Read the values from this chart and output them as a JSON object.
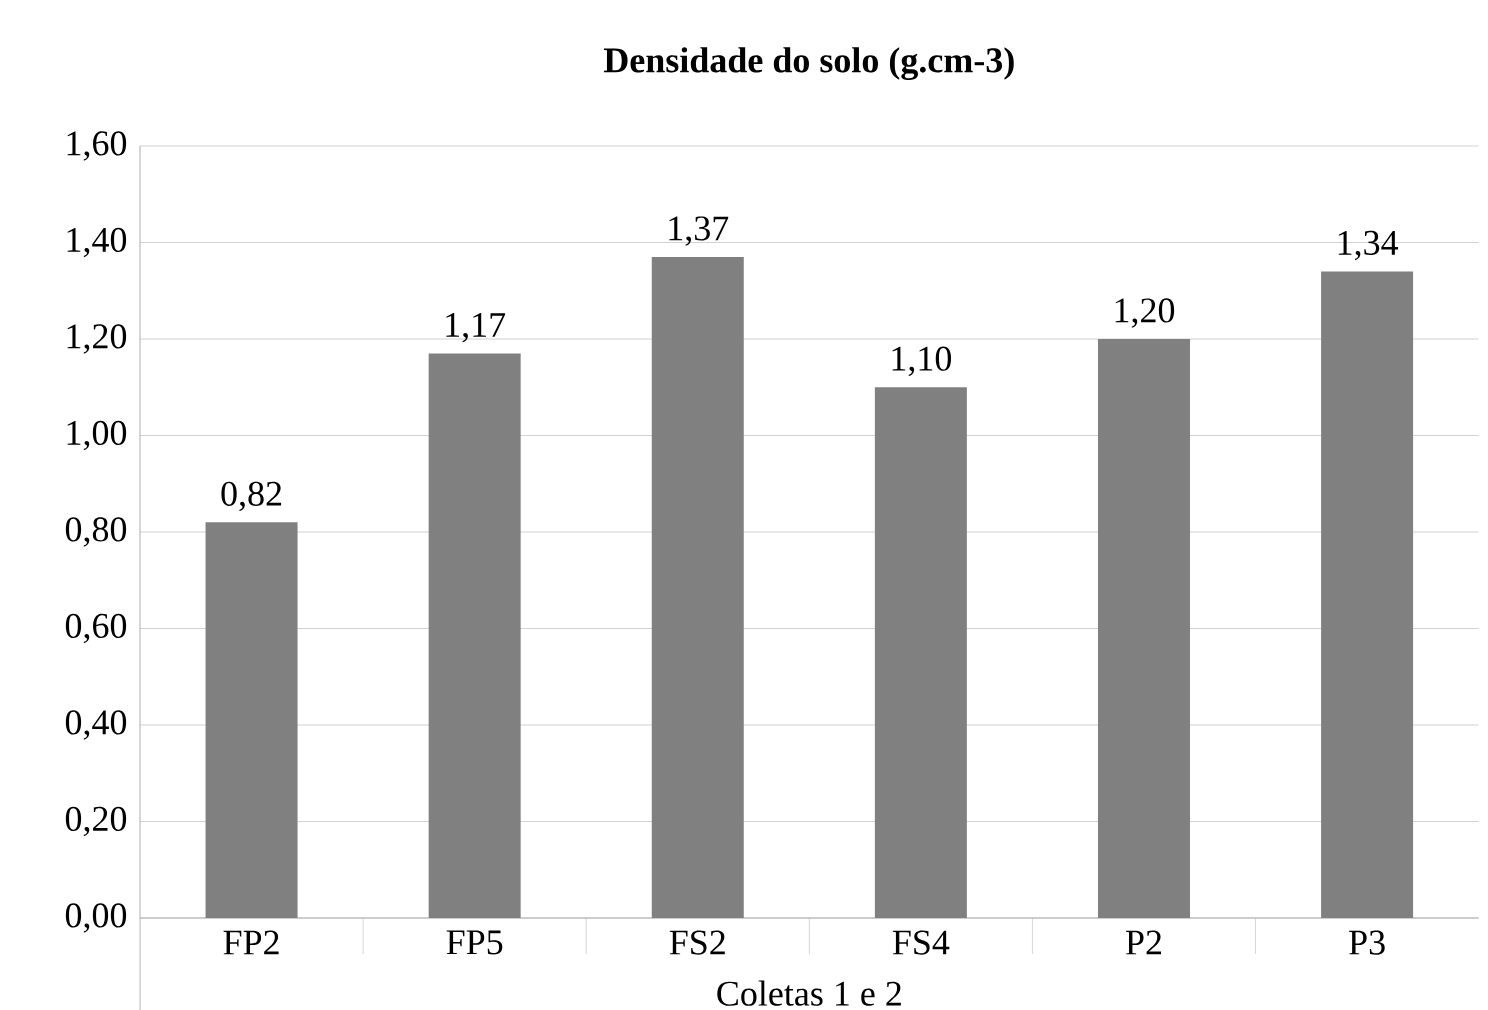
{
  "chart_data": {
    "type": "bar",
    "title": "Densidade do solo (g.cm-3)",
    "xlabel": "Coletas 1 e 2",
    "categories": [
      "FP2",
      "FP5",
      "FS2",
      "FS4",
      "P2",
      "P3"
    ],
    "values": [
      0.82,
      1.17,
      1.37,
      1.1,
      1.2,
      1.34
    ],
    "value_labels": [
      "0,82",
      "1,17",
      "1,37",
      "1,10",
      "1,20",
      "1,34"
    ],
    "color": "#808080",
    "ylim": [
      0,
      1.6
    ],
    "yticks": [
      {
        "value": 0,
        "label": "0,00"
      },
      {
        "value": 0.2,
        "label": "0,20"
      },
      {
        "value": 0.4,
        "label": "0,40"
      },
      {
        "value": 0.6,
        "label": "0,60"
      },
      {
        "value": 0.8,
        "label": "0,80"
      },
      {
        "value": 1.0,
        "label": "1,00"
      },
      {
        "value": 1.2,
        "label": "1,20"
      },
      {
        "value": 1.4,
        "label": "1,40"
      },
      {
        "value": 1.6,
        "label": "1,60"
      }
    ],
    "grid": "y"
  }
}
